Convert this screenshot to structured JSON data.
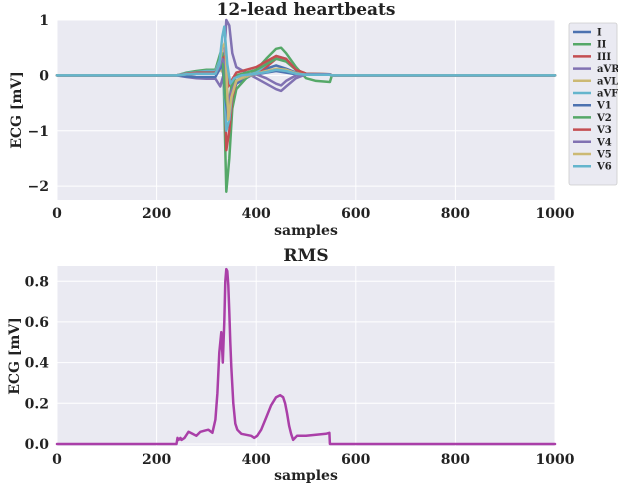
{
  "chart_data": [
    {
      "type": "line",
      "title": "12-lead heartbeats",
      "xlabel": "samples",
      "ylabel": "ECG [mV]",
      "xlim": [
        0,
        1000
      ],
      "ylim": [
        -2.25,
        1.0
      ],
      "xticks": [
        0,
        200,
        400,
        600,
        800,
        1000
      ],
      "yticks": [
        -2,
        -1,
        0,
        1
      ],
      "grid": true,
      "legend_position": "right-outside",
      "series": [
        {
          "name": "I",
          "color": "#4C72B0",
          "x": [
            0,
            240,
            260,
            280,
            300,
            318,
            328,
            334,
            340,
            348,
            360,
            380,
            400,
            420,
            440,
            460,
            480,
            500,
            530,
            548,
            552,
            1000
          ],
          "y": [
            0,
            0,
            0.03,
            0.05,
            0.06,
            0.06,
            0.2,
            0.15,
            -0.3,
            -0.5,
            -0.15,
            -0.05,
            0.05,
            0.12,
            0.18,
            0.12,
            0.05,
            0.02,
            0.01,
            0.01,
            0,
            0
          ]
        },
        {
          "name": "II",
          "color": "#55A868",
          "x": [
            0,
            240,
            260,
            280,
            300,
            318,
            328,
            334,
            340,
            346,
            352,
            360,
            380,
            400,
            420,
            440,
            450,
            460,
            480,
            500,
            520,
            548,
            552,
            1000
          ],
          "y": [
            0,
            0,
            0.05,
            0.08,
            0.1,
            0.1,
            0.4,
            0.2,
            -2.1,
            -1.5,
            -0.6,
            -0.25,
            -0.05,
            0.1,
            0.3,
            0.48,
            0.5,
            0.4,
            0.15,
            -0.05,
            -0.1,
            -0.12,
            0,
            0
          ]
        },
        {
          "name": "III",
          "color": "#C44E52",
          "x": [
            0,
            240,
            260,
            280,
            300,
            318,
            328,
            336,
            340,
            346,
            352,
            360,
            380,
            400,
            420,
            440,
            460,
            480,
            500,
            548,
            552,
            1000
          ],
          "y": [
            0,
            0,
            0.03,
            0.04,
            0.05,
            0.05,
            0.2,
            0.1,
            -1.35,
            -1.0,
            -0.4,
            -0.1,
            0.0,
            0.05,
            0.15,
            0.3,
            0.28,
            0.1,
            0.03,
            0.02,
            0,
            0
          ]
        },
        {
          "name": "aVR",
          "color": "#8172B2",
          "x": [
            0,
            240,
            260,
            280,
            300,
            318,
            328,
            334,
            340,
            346,
            352,
            360,
            380,
            400,
            420,
            440,
            450,
            460,
            480,
            500,
            548,
            552,
            1000
          ],
          "y": [
            0,
            0,
            -0.03,
            -0.05,
            -0.06,
            -0.06,
            -0.2,
            0.0,
            1.0,
            0.9,
            0.4,
            0.15,
            0.05,
            -0.05,
            -0.15,
            -0.25,
            -0.28,
            -0.2,
            -0.05,
            0.02,
            0.02,
            0,
            0
          ]
        },
        {
          "name": "aVL",
          "color": "#CCB974",
          "x": [
            0,
            240,
            260,
            280,
            300,
            318,
            328,
            334,
            340,
            346,
            352,
            360,
            380,
            400,
            420,
            440,
            460,
            480,
            500,
            548,
            552,
            1000
          ],
          "y": [
            0,
            0,
            0.02,
            0.03,
            0.03,
            0.03,
            0.1,
            0.05,
            -0.6,
            -0.55,
            -0.25,
            -0.1,
            -0.02,
            0.02,
            0.06,
            0.1,
            0.08,
            0.03,
            0.01,
            0.01,
            0,
            0
          ]
        },
        {
          "name": "aVF",
          "color": "#64B5CD",
          "x": [
            0,
            240,
            260,
            280,
            300,
            318,
            328,
            334,
            340,
            346,
            352,
            360,
            380,
            400,
            420,
            440,
            460,
            480,
            500,
            548,
            552,
            1000
          ],
          "y": [
            0,
            0,
            0.04,
            0.06,
            0.08,
            0.08,
            0.3,
            0.15,
            -1.0,
            -0.8,
            -0.3,
            -0.1,
            0.0,
            0.05,
            0.2,
            0.35,
            0.3,
            0.1,
            0.02,
            0.02,
            0,
            0
          ]
        },
        {
          "name": "V1",
          "color": "#4C72B0",
          "x": [
            0,
            240,
            260,
            280,
            300,
            318,
            326,
            332,
            338,
            344,
            350,
            360,
            380,
            400,
            420,
            440,
            460,
            480,
            500,
            548,
            552,
            1000
          ],
          "y": [
            0,
            0,
            -0.02,
            -0.03,
            -0.03,
            -0.03,
            0.1,
            0.2,
            -0.4,
            -0.8,
            -0.3,
            -0.1,
            0.0,
            0.02,
            0.05,
            0.08,
            0.05,
            0.02,
            0.01,
            0.01,
            0,
            0
          ]
        },
        {
          "name": "V2",
          "color": "#55A868",
          "x": [
            0,
            240,
            260,
            280,
            300,
            318,
            326,
            332,
            338,
            344,
            350,
            360,
            380,
            400,
            420,
            440,
            460,
            480,
            500,
            548,
            552,
            1000
          ],
          "y": [
            0,
            0,
            0.03,
            0.05,
            0.05,
            0.05,
            0.2,
            0.4,
            -0.4,
            -0.6,
            -0.2,
            0.0,
            0.05,
            0.1,
            0.2,
            0.3,
            0.25,
            0.1,
            0.03,
            0.02,
            0,
            0
          ]
        },
        {
          "name": "V3",
          "color": "#C44E52",
          "x": [
            0,
            240,
            260,
            280,
            300,
            318,
            326,
            332,
            338,
            344,
            350,
            360,
            380,
            400,
            420,
            440,
            460,
            480,
            500,
            548,
            552,
            1000
          ],
          "y": [
            0,
            0,
            0.03,
            0.05,
            0.05,
            0.05,
            0.2,
            0.3,
            0.35,
            -0.2,
            -0.1,
            0.05,
            0.1,
            0.15,
            0.25,
            0.35,
            0.3,
            0.1,
            0.03,
            0.02,
            0,
            0
          ]
        },
        {
          "name": "V4",
          "color": "#8172B2",
          "x": [
            0,
            240,
            260,
            280,
            300,
            318,
            326,
            332,
            338,
            344,
            350,
            360,
            380,
            400,
            420,
            440,
            450,
            460,
            480,
            500,
            548,
            552,
            1000
          ],
          "y": [
            0,
            0,
            0.02,
            0.03,
            0.03,
            0.03,
            0.15,
            0.3,
            0.2,
            -0.5,
            -0.3,
            -0.1,
            0.0,
            0.02,
            -0.05,
            -0.15,
            -0.18,
            -0.1,
            0.0,
            0.02,
            0.02,
            0,
            0
          ]
        },
        {
          "name": "V5",
          "color": "#CCB974",
          "x": [
            0,
            240,
            260,
            280,
            300,
            318,
            326,
            332,
            338,
            344,
            350,
            360,
            380,
            400,
            420,
            440,
            460,
            480,
            500,
            548,
            552,
            1000
          ],
          "y": [
            0,
            0,
            0.02,
            0.03,
            0.03,
            0.03,
            0.2,
            0.5,
            0.6,
            -0.8,
            -0.4,
            -0.1,
            0.0,
            0.03,
            0.08,
            0.12,
            0.1,
            0.04,
            0.01,
            0.01,
            0,
            0
          ]
        },
        {
          "name": "V6",
          "color": "#64B5CD",
          "x": [
            0,
            240,
            260,
            280,
            300,
            318,
            326,
            332,
            336,
            342,
            348,
            356,
            370,
            400,
            420,
            440,
            460,
            480,
            500,
            548,
            552,
            1000
          ],
          "y": [
            0,
            0,
            0.02,
            0.03,
            0.03,
            0.03,
            0.2,
            0.7,
            0.88,
            0.2,
            -0.15,
            -0.05,
            0.0,
            0.03,
            0.06,
            0.1,
            0.08,
            0.03,
            0.01,
            0.01,
            0,
            0
          ]
        }
      ]
    },
    {
      "type": "line",
      "title": "RMS",
      "xlabel": "samples",
      "ylabel": "ECG [mV]",
      "xlim": [
        0,
        1000
      ],
      "ylim": [
        -0.01,
        0.875
      ],
      "xticks": [
        0,
        200,
        400,
        600,
        800,
        1000
      ],
      "yticks": [
        0.0,
        0.2,
        0.4,
        0.6,
        0.8
      ],
      "yticks_labels": [
        "0.0",
        "0.2",
        "0.4",
        "0.6",
        "0.8"
      ],
      "grid": true,
      "series": [
        {
          "name": "",
          "color": "#AA3FA8",
          "x": [
            0,
            240,
            242,
            244,
            248,
            250,
            256,
            264,
            272,
            280,
            288,
            296,
            304,
            312,
            318,
            322,
            326,
            330,
            333,
            336,
            338,
            340,
            342,
            344,
            346,
            348,
            350,
            354,
            358,
            362,
            366,
            370,
            380,
            390,
            396,
            402,
            410,
            420,
            430,
            440,
            448,
            454,
            458,
            462,
            466,
            470,
            474,
            478,
            482,
            490,
            500,
            520,
            540,
            547,
            548,
            549,
            552,
            1000
          ],
          "y": [
            0,
            0,
            0.03,
            0.02,
            0.03,
            0.02,
            0.03,
            0.06,
            0.05,
            0.04,
            0.06,
            0.065,
            0.07,
            0.055,
            0.12,
            0.25,
            0.45,
            0.55,
            0.4,
            0.6,
            0.8,
            0.86,
            0.85,
            0.78,
            0.65,
            0.5,
            0.38,
            0.2,
            0.1,
            0.07,
            0.06,
            0.05,
            0.045,
            0.04,
            0.03,
            0.04,
            0.07,
            0.13,
            0.19,
            0.23,
            0.24,
            0.23,
            0.2,
            0.15,
            0.09,
            0.05,
            0.02,
            0.03,
            0.04,
            0.04,
            0.04,
            0.045,
            0.05,
            0.055,
            0.0,
            0,
            0,
            0
          ]
        }
      ]
    }
  ]
}
